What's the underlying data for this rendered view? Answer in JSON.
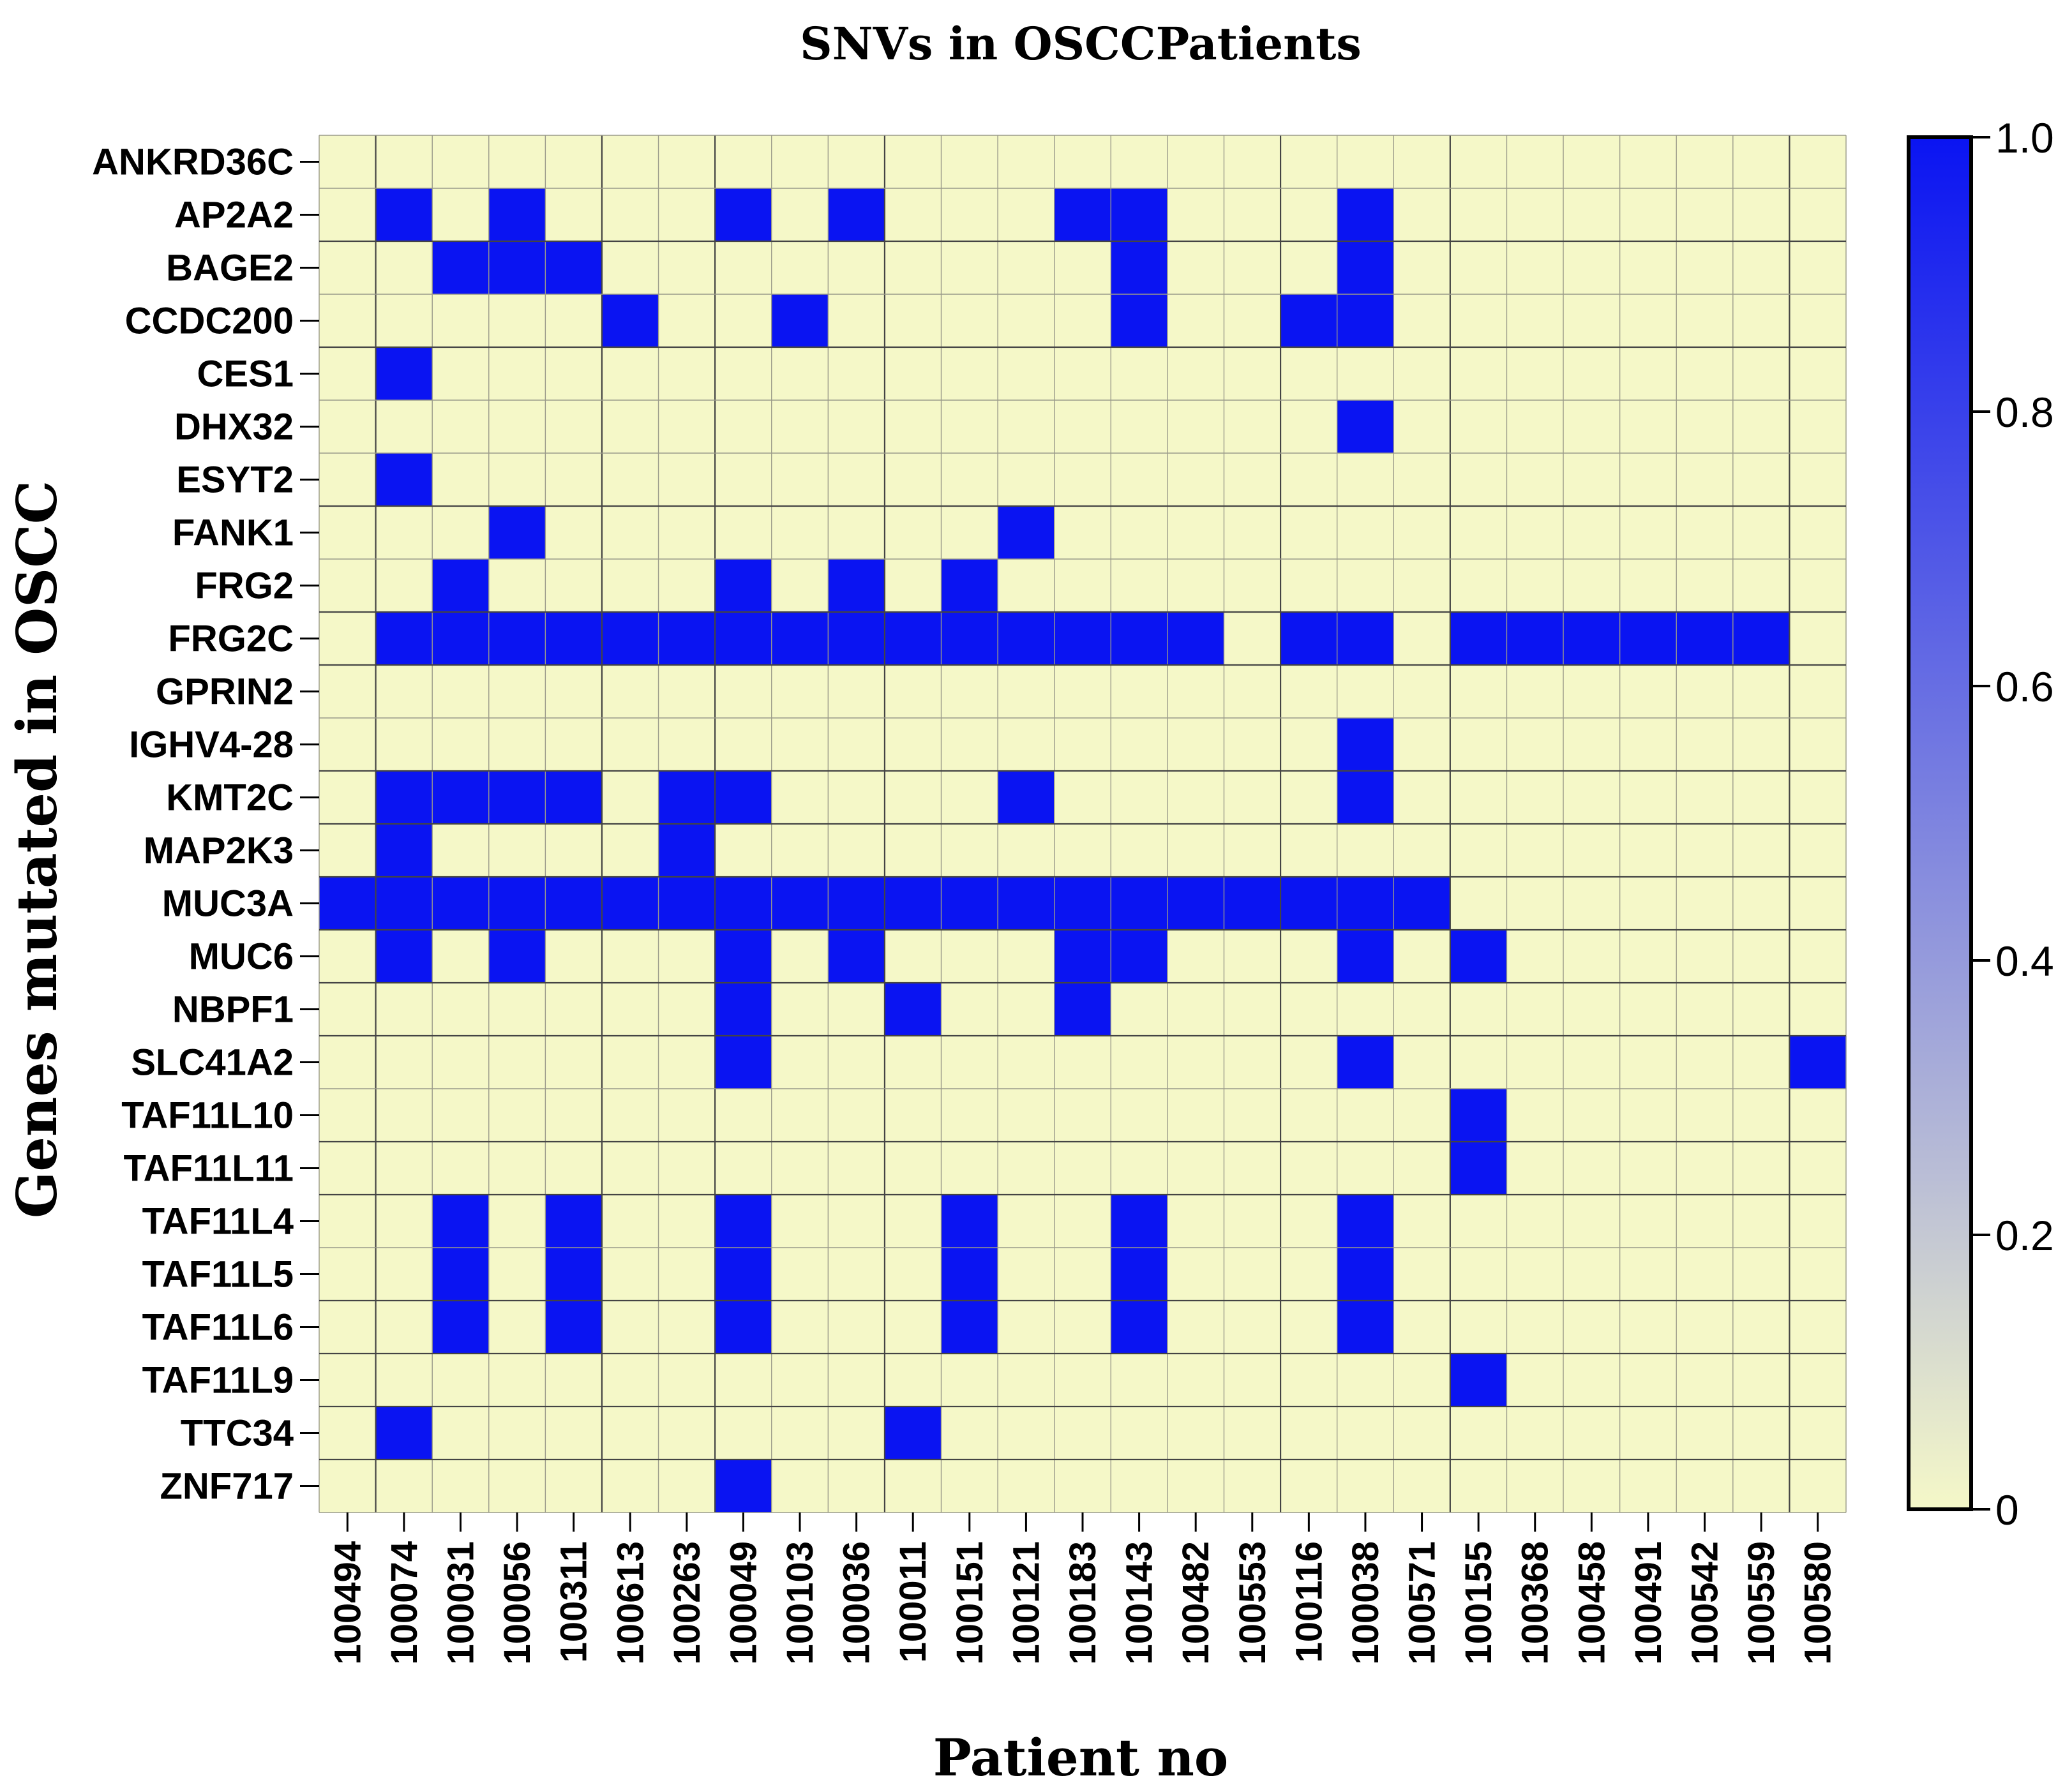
{
  "chart_data": {
    "type": "heatmap",
    "title": "SNVs in OSCCPatients",
    "xlabel": "Patient no",
    "ylabel": "Genes mutated in OSCC",
    "x_categories": [
      "100494",
      "100074",
      "100031",
      "100056",
      "100311",
      "100613",
      "100263",
      "100049",
      "100103",
      "100036",
      "100011",
      "100151",
      "100121",
      "100183",
      "100143",
      "100482",
      "100553",
      "100116",
      "100038",
      "100571",
      "100155",
      "100368",
      "100458",
      "100491",
      "100542",
      "100559",
      "100580"
    ],
    "y_categories": [
      "ANKRD36C",
      "AP2A2",
      "BAGE2",
      "CCDC200",
      "CES1",
      "DHX32",
      "ESYT2",
      "FANK1",
      "FRG2",
      "FRG2C",
      "GPRIN2",
      "IGHV4-28",
      "KMT2C",
      "MAP2K3",
      "MUC3A",
      "MUC6",
      "NBPF1",
      "SLC41A2",
      "TAF11L10",
      "TAF11L11",
      "TAF11L4",
      "TAF11L5",
      "TAF11L6",
      "TAF11L9",
      "TTC34",
      "ZNF717"
    ],
    "values": [
      [
        0,
        0,
        0,
        0,
        0,
        0,
        0,
        0,
        0,
        0,
        0,
        0,
        0,
        0,
        0,
        0,
        0,
        0,
        0,
        0,
        0,
        0,
        0,
        0,
        0,
        0,
        0
      ],
      [
        0,
        1,
        0,
        1,
        0,
        0,
        0,
        1,
        0,
        1,
        0,
        0,
        0,
        1,
        1,
        0,
        0,
        0,
        1,
        0,
        0,
        0,
        0,
        0,
        0,
        0,
        0
      ],
      [
        0,
        0,
        1,
        1,
        1,
        0,
        0,
        0,
        0,
        0,
        0,
        0,
        0,
        0,
        1,
        0,
        0,
        0,
        1,
        0,
        0,
        0,
        0,
        0,
        0,
        0,
        0
      ],
      [
        0,
        0,
        0,
        0,
        0,
        1,
        0,
        0,
        1,
        0,
        0,
        0,
        0,
        0,
        1,
        0,
        0,
        1,
        1,
        0,
        0,
        0,
        0,
        0,
        0,
        0,
        0
      ],
      [
        0,
        1,
        0,
        0,
        0,
        0,
        0,
        0,
        0,
        0,
        0,
        0,
        0,
        0,
        0,
        0,
        0,
        0,
        0,
        0,
        0,
        0,
        0,
        0,
        0,
        0,
        0
      ],
      [
        0,
        0,
        0,
        0,
        0,
        0,
        0,
        0,
        0,
        0,
        0,
        0,
        0,
        0,
        0,
        0,
        0,
        0,
        1,
        0,
        0,
        0,
        0,
        0,
        0,
        0,
        0
      ],
      [
        0,
        1,
        0,
        0,
        0,
        0,
        0,
        0,
        0,
        0,
        0,
        0,
        0,
        0,
        0,
        0,
        0,
        0,
        0,
        0,
        0,
        0,
        0,
        0,
        0,
        0,
        0
      ],
      [
        0,
        0,
        0,
        1,
        0,
        0,
        0,
        0,
        0,
        0,
        0,
        0,
        1,
        0,
        0,
        0,
        0,
        0,
        0,
        0,
        0,
        0,
        0,
        0,
        0,
        0,
        0
      ],
      [
        0,
        0,
        1,
        0,
        0,
        0,
        0,
        1,
        0,
        1,
        0,
        1,
        0,
        0,
        0,
        0,
        0,
        0,
        0,
        0,
        0,
        0,
        0,
        0,
        0,
        0,
        0
      ],
      [
        0,
        1,
        1,
        1,
        1,
        1,
        1,
        1,
        1,
        1,
        1,
        1,
        1,
        1,
        1,
        1,
        0,
        1,
        1,
        0,
        1,
        1,
        1,
        1,
        1,
        1,
        0
      ],
      [
        0,
        0,
        0,
        0,
        0,
        0,
        0,
        0,
        0,
        0,
        0,
        0,
        0,
        0,
        0,
        0,
        0,
        0,
        0,
        0,
        0,
        0,
        0,
        0,
        0,
        0,
        0
      ],
      [
        0,
        0,
        0,
        0,
        0,
        0,
        0,
        0,
        0,
        0,
        0,
        0,
        0,
        0,
        0,
        0,
        0,
        0,
        1,
        0,
        0,
        0,
        0,
        0,
        0,
        0,
        0
      ],
      [
        0,
        1,
        1,
        1,
        1,
        0,
        1,
        1,
        0,
        0,
        0,
        0,
        1,
        0,
        0,
        0,
        0,
        0,
        1,
        0,
        0,
        0,
        0,
        0,
        0,
        0,
        0
      ],
      [
        0,
        1,
        0,
        0,
        0,
        0,
        1,
        0,
        0,
        0,
        0,
        0,
        0,
        0,
        0,
        0,
        0,
        0,
        0,
        0,
        0,
        0,
        0,
        0,
        0,
        0,
        0
      ],
      [
        1,
        1,
        1,
        1,
        1,
        1,
        1,
        1,
        1,
        1,
        1,
        1,
        1,
        1,
        1,
        1,
        1,
        1,
        1,
        1,
        0,
        0,
        0,
        0,
        0,
        0,
        0
      ],
      [
        0,
        1,
        0,
        1,
        0,
        0,
        0,
        1,
        0,
        1,
        0,
        0,
        0,
        1,
        1,
        0,
        0,
        0,
        1,
        0,
        1,
        0,
        0,
        0,
        0,
        0,
        0
      ],
      [
        0,
        0,
        0,
        0,
        0,
        0,
        0,
        1,
        0,
        0,
        1,
        0,
        0,
        1,
        0,
        0,
        0,
        0,
        0,
        0,
        0,
        0,
        0,
        0,
        0,
        0,
        0
      ],
      [
        0,
        0,
        0,
        0,
        0,
        0,
        0,
        1,
        0,
        0,
        0,
        0,
        0,
        0,
        0,
        0,
        0,
        0,
        1,
        0,
        0,
        0,
        0,
        0,
        0,
        0,
        1
      ],
      [
        0,
        0,
        0,
        0,
        0,
        0,
        0,
        0,
        0,
        0,
        0,
        0,
        0,
        0,
        0,
        0,
        0,
        0,
        0,
        0,
        1,
        0,
        0,
        0,
        0,
        0,
        0
      ],
      [
        0,
        0,
        0,
        0,
        0,
        0,
        0,
        0,
        0,
        0,
        0,
        0,
        0,
        0,
        0,
        0,
        0,
        0,
        0,
        0,
        1,
        0,
        0,
        0,
        0,
        0,
        0
      ],
      [
        0,
        0,
        1,
        0,
        1,
        0,
        0,
        1,
        0,
        0,
        0,
        1,
        0,
        0,
        1,
        0,
        0,
        0,
        1,
        0,
        0,
        0,
        0,
        0,
        0,
        0,
        0
      ],
      [
        0,
        0,
        1,
        0,
        1,
        0,
        0,
        1,
        0,
        0,
        0,
        1,
        0,
        0,
        1,
        0,
        0,
        0,
        1,
        0,
        0,
        0,
        0,
        0,
        0,
        0,
        0
      ],
      [
        0,
        0,
        1,
        0,
        1,
        0,
        0,
        1,
        0,
        0,
        0,
        1,
        0,
        0,
        1,
        0,
        0,
        0,
        1,
        0,
        0,
        0,
        0,
        0,
        0,
        0,
        0
      ],
      [
        0,
        0,
        0,
        0,
        0,
        0,
        0,
        0,
        0,
        0,
        0,
        0,
        0,
        0,
        0,
        0,
        0,
        0,
        0,
        0,
        1,
        0,
        0,
        0,
        0,
        0,
        0
      ],
      [
        0,
        1,
        0,
        0,
        0,
        0,
        0,
        0,
        0,
        0,
        1,
        0,
        0,
        0,
        0,
        0,
        0,
        0,
        0,
        0,
        0,
        0,
        0,
        0,
        0,
        0,
        0
      ],
      [
        0,
        0,
        0,
        0,
        0,
        0,
        0,
        1,
        0,
        0,
        0,
        0,
        0,
        0,
        0,
        0,
        0,
        0,
        0,
        0,
        0,
        0,
        0,
        0,
        0,
        0,
        0
      ]
    ],
    "colorscale": {
      "min": 0,
      "max": 1,
      "low_color": "#f5f8c8",
      "mid_color": "#b8bcd6",
      "high_color": "#0a14f2",
      "tick_labels": [
        "0",
        "0.2",
        "0.4",
        "0.6",
        "0.8",
        "1.0"
      ],
      "tick_values": [
        0,
        0.2,
        0.4,
        0.6,
        0.8,
        1.0
      ]
    },
    "grid": true,
    "legend": "colorbar-right"
  }
}
